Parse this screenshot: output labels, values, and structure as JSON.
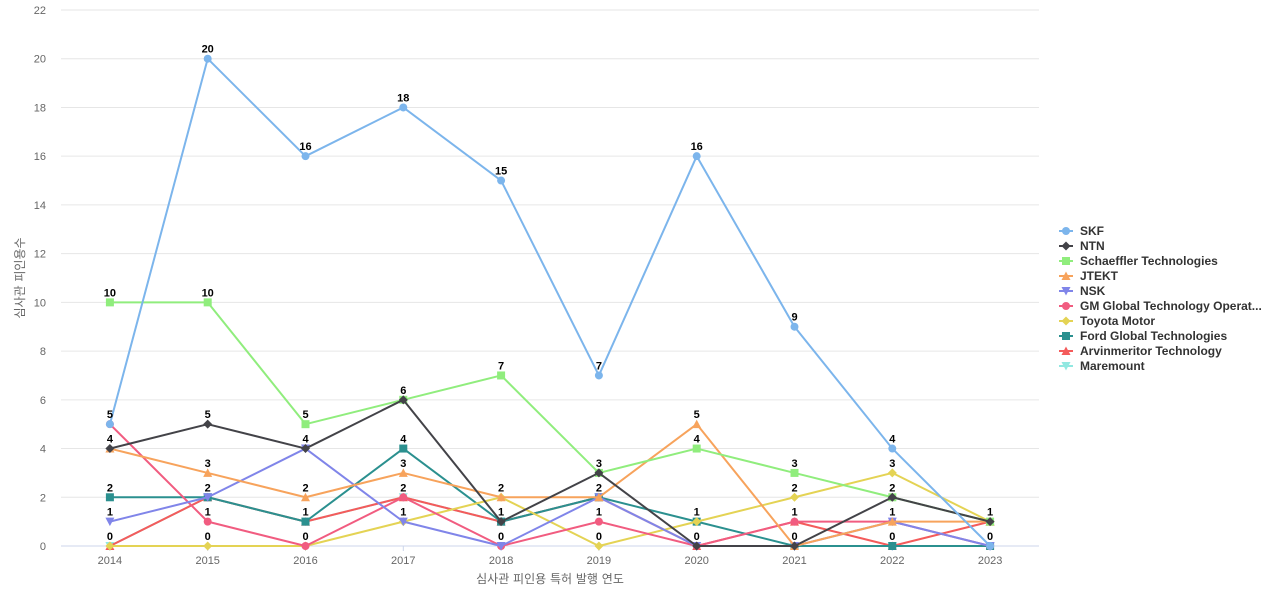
{
  "chart_data": {
    "type": "line",
    "title": "",
    "xlabel": "심사관 피인용 특허 발행 연도",
    "ylabel": "심사관 피인용수",
    "x": [
      "2014",
      "2015",
      "2016",
      "2017",
      "2018",
      "2019",
      "2020",
      "2021",
      "2022",
      "2023"
    ],
    "ylim": [
      0,
      22
    ],
    "yticks": [
      0,
      2,
      4,
      6,
      8,
      10,
      12,
      14,
      16,
      18,
      20,
      22
    ],
    "grid": true,
    "legend_position": "right",
    "series": [
      {
        "name": "SKF",
        "color": "#7cb5ec",
        "marker": "circle",
        "values": [
          5,
          20,
          16,
          18,
          15,
          7,
          16,
          9,
          4,
          0
        ],
        "labeled": true
      },
      {
        "name": "NTN",
        "color": "#434348",
        "marker": "diamond",
        "values": [
          4,
          5,
          4,
          6,
          1,
          3,
          0,
          0,
          2,
          1
        ],
        "labeled": true
      },
      {
        "name": "Schaeffler Technologies",
        "color": "#90ed7d",
        "marker": "square",
        "values": [
          10,
          10,
          5,
          6,
          7,
          3,
          4,
          3,
          2,
          1
        ],
        "labeled": true
      },
      {
        "name": "JTEKT",
        "color": "#f7a35c",
        "marker": "triangle",
        "values": [
          4,
          3,
          2,
          3,
          2,
          2,
          5,
          0,
          1,
          1
        ],
        "labeled": true
      },
      {
        "name": "NSK",
        "color": "#8085e9",
        "marker": "triangle-down",
        "values": [
          1,
          2,
          4,
          1,
          0,
          2,
          0,
          0,
          1,
          0
        ],
        "labeled": true
      },
      {
        "name": "GM Global Technology Operat...",
        "color": "#f15c80",
        "marker": "circle",
        "values": [
          5,
          1,
          0,
          2,
          0,
          1,
          0,
          1,
          1,
          0
        ],
        "labeled": true
      },
      {
        "name": "Toyota Motor",
        "color": "#e4d354",
        "marker": "diamond",
        "values": [
          0,
          0,
          0,
          1,
          2,
          0,
          1,
          2,
          3,
          1
        ],
        "labeled": true
      },
      {
        "name": "Ford Global Technologies",
        "color": "#2b908f",
        "marker": "square",
        "values": [
          2,
          2,
          1,
          4,
          1,
          2,
          1,
          0,
          0,
          0
        ],
        "labeled": true
      },
      {
        "name": "Arvinmeritor Technology",
        "color": "#f45b5b",
        "marker": "triangle",
        "values": [
          0,
          2,
          1,
          2,
          1,
          2,
          0,
          1,
          0,
          1
        ],
        "labeled": false
      },
      {
        "name": "Maremount",
        "color": "#91e8e1",
        "marker": "triangle-down",
        "values": [
          0,
          2,
          1,
          2,
          1,
          2,
          0,
          0,
          0,
          0
        ],
        "labeled": false
      }
    ]
  }
}
